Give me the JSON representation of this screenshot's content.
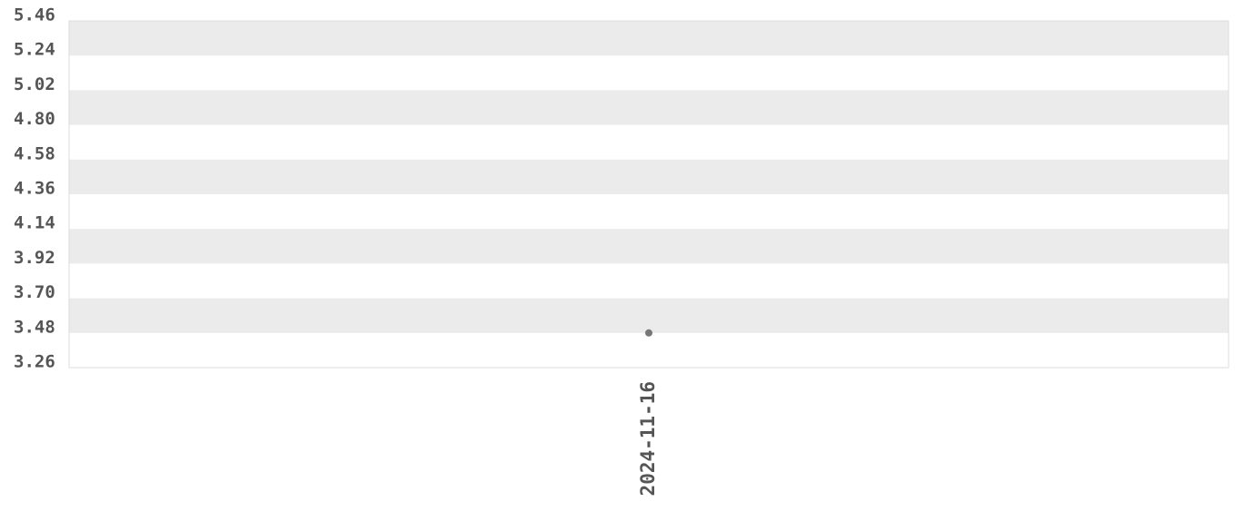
{
  "chart_data": {
    "type": "scatter",
    "title": "",
    "xlabel": "",
    "ylabel": "",
    "x": [
      "2024-11-16"
    ],
    "series": [
      {
        "values": [
          3.48
        ]
      }
    ],
    "x_tick_labels": [
      "2024-11-16"
    ],
    "y_tick_labels": [
      "5.46",
      "5.24",
      "5.02",
      "4.80",
      "4.58",
      "4.36",
      "4.14",
      "3.92",
      "3.70",
      "3.48",
      "3.26"
    ],
    "ylim": [
      3.26,
      5.46
    ],
    "grid": "alternating horizontal bands",
    "legend": "none",
    "colors": {
      "point": "#777777",
      "band": "#ebebeb",
      "text": "#555555",
      "border": "#dddddd"
    }
  }
}
